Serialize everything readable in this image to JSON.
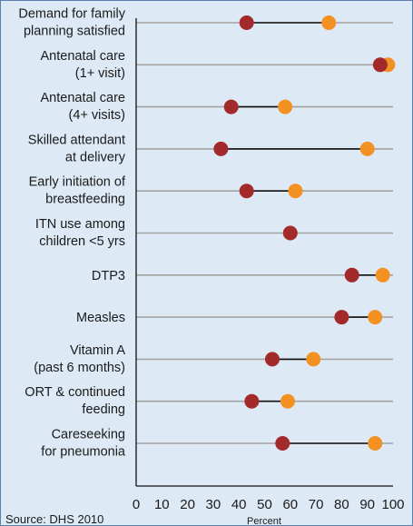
{
  "chart_data": {
    "type": "dumbbell",
    "title": "",
    "xlabel": "Percent",
    "ylabel": "",
    "xlim": [
      0,
      100
    ],
    "xticks": [
      0,
      10,
      20,
      30,
      40,
      50,
      60,
      70,
      80,
      90,
      100
    ],
    "grid": true,
    "legend": "none",
    "categories": [
      [
        "Demand for family",
        "planning satisfied"
      ],
      [
        "Antenatal care",
        "(1+ visit)"
      ],
      [
        "Antenatal care",
        "(4+ visits)"
      ],
      [
        "Skilled attendant",
        "at delivery"
      ],
      [
        "Early initiation of",
        "breastfeeding"
      ],
      [
        "ITN use among",
        "children <5 yrs"
      ],
      [
        "DTP3"
      ],
      [
        "Measles"
      ],
      [
        "Vitamin A",
        "(past 6 months)"
      ],
      [
        "ORT & continued",
        "feeding"
      ],
      [
        "Careseeking",
        "for pneumonia"
      ]
    ],
    "series": [
      {
        "color": "#a32a2a",
        "values": [
          43,
          95,
          37,
          33,
          43,
          60,
          84,
          80,
          53,
          45,
          57
        ]
      },
      {
        "color": "#f39122",
        "values": [
          75,
          98,
          58,
          90,
          62,
          60,
          96,
          93,
          69,
          59,
          93
        ]
      }
    ]
  },
  "footer": {
    "source": "Source: DHS 2010"
  }
}
